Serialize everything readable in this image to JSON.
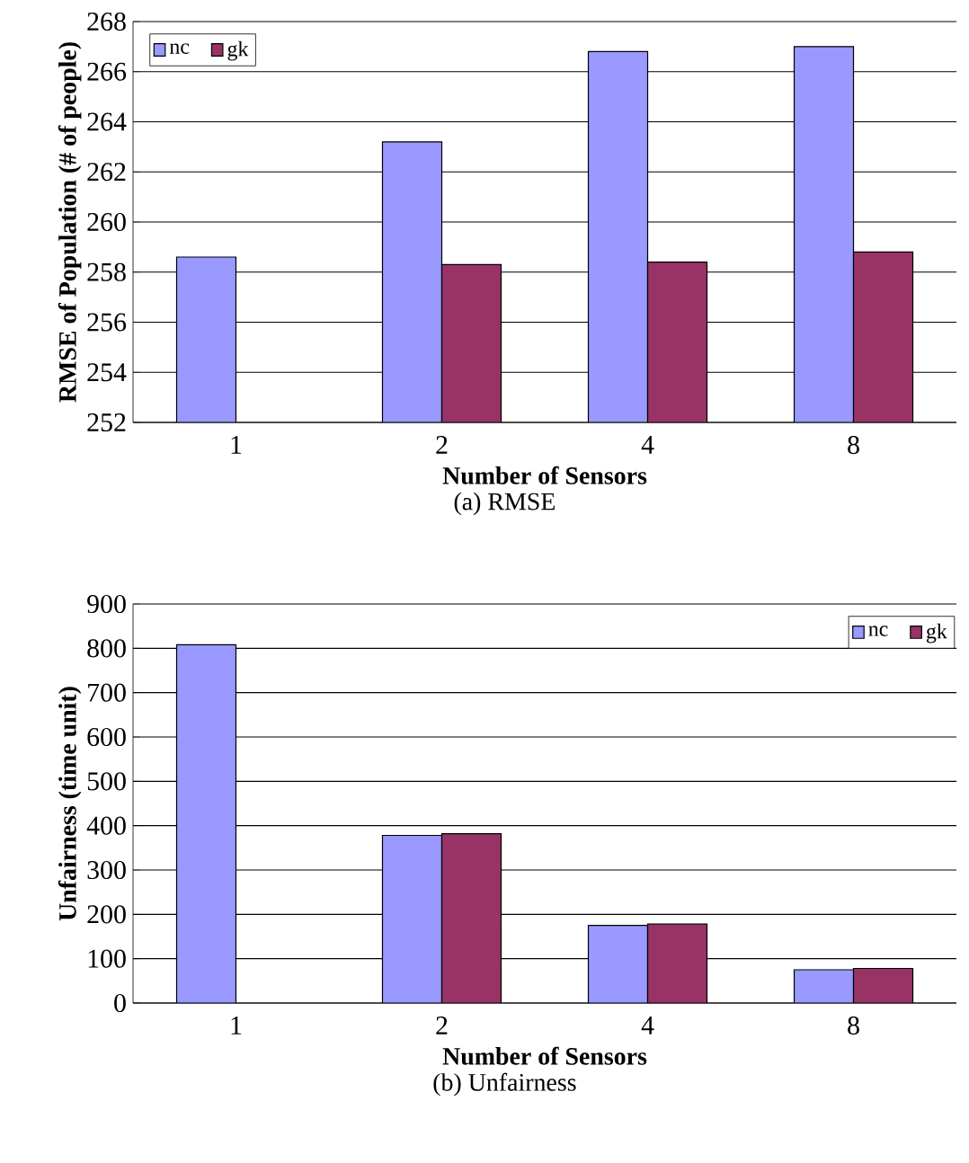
{
  "chart_data": [
    {
      "type": "bar",
      "categories": [
        "1",
        "2",
        "4",
        "8"
      ],
      "xlabel": "Number of Sensors",
      "ylabel": "RMSE of Population (# of people)",
      "annotations": [
        "(a) RMSE"
      ],
      "series": [
        {
          "name": "nc",
          "color": "#9999ff",
          "values": [
            258.6,
            263.2,
            266.8,
            267.0
          ]
        },
        {
          "name": "gk",
          "color": "#993366",
          "values": [
            null,
            258.3,
            258.4,
            258.8
          ]
        }
      ],
      "ylim": [
        252,
        268
      ],
      "yticks": [
        252,
        254,
        256,
        258,
        260,
        262,
        264,
        266,
        268
      ],
      "grid": "y",
      "legend": "top left"
    },
    {
      "type": "bar",
      "categories": [
        "1",
        "2",
        "4",
        "8"
      ],
      "xlabel": "Number of Sensors",
      "ylabel": "Unfairness (time unit)",
      "annotations": [
        "(b) Unfairness"
      ],
      "series": [
        {
          "name": "nc",
          "color": "#9999ff",
          "values": [
            808,
            378,
            175,
            75
          ]
        },
        {
          "name": "gk",
          "color": "#993366",
          "values": [
            null,
            382,
            178,
            78
          ]
        }
      ],
      "ylim": [
        0,
        900
      ],
      "yticks": [
        0,
        100,
        200,
        300,
        400,
        500,
        600,
        700,
        800,
        900
      ],
      "grid": "y",
      "legend": "top right"
    }
  ]
}
